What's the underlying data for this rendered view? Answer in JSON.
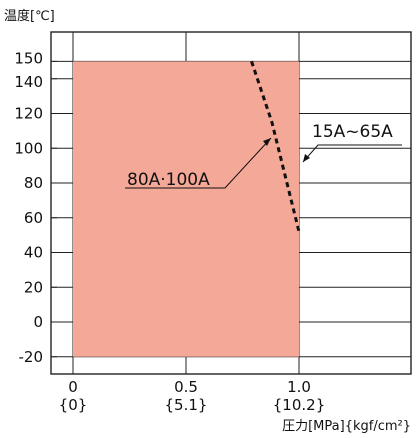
{
  "chart_data": {
    "type": "area",
    "ylabel": "温度[℃]",
    "xlabel": "圧力[MPa]{kgf/cm²}",
    "xlim": [
      0,
      1.0
    ],
    "ylim": [
      -30,
      160
    ],
    "grid": true,
    "x_ticks": [
      {
        "value": 0,
        "label": "0",
        "sublabel": "{0}"
      },
      {
        "value": 0.5,
        "label": "0.5",
        "sublabel": "{5.1}"
      },
      {
        "value": 1.0,
        "label": "1.0",
        "sublabel": "{10.2}"
      }
    ],
    "y_ticks": [
      {
        "value": 150,
        "label": "150"
      },
      {
        "value": 140,
        "label": "140"
      },
      {
        "value": 120,
        "label": "120"
      },
      {
        "value": 100,
        "label": "100"
      },
      {
        "value": 80,
        "label": "80"
      },
      {
        "value": 60,
        "label": "60"
      },
      {
        "value": 40,
        "label": "40"
      },
      {
        "value": 20,
        "label": "20"
      },
      {
        "value": 0,
        "label": "0"
      },
      {
        "value": -20,
        "label": "-20"
      }
    ],
    "series": [
      {
        "name": "15A~65A",
        "style": "filled-region",
        "color": "#f4a898",
        "points": [
          [
            0,
            -20
          ],
          [
            0,
            150
          ],
          [
            1.0,
            150
          ],
          [
            1.0,
            -20
          ]
        ]
      },
      {
        "name": "80A·100A",
        "style": "dashed-line",
        "color": "#111111",
        "points": [
          [
            0.79,
            150
          ],
          [
            0.88,
            115
          ],
          [
            1.0,
            52
          ]
        ]
      }
    ]
  }
}
